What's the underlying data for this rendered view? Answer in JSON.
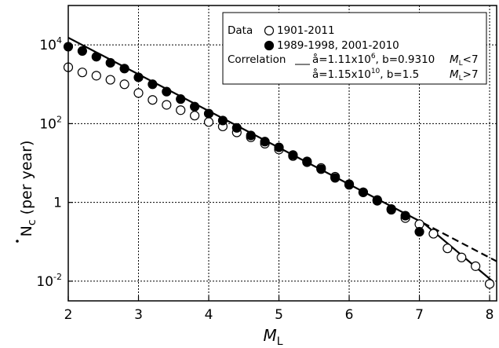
{
  "chart_data": {
    "type": "scatter",
    "xlabel": "M",
    "xlabel_sub": "L",
    "ylabel": "N",
    "ylabel_sub": "c",
    "ylabel_suffix": " (per year)",
    "xlim": [
      2,
      8.1
    ],
    "ylim_log10": [
      -2.5,
      5
    ],
    "log_y": true,
    "grid": true,
    "x_ticks": [
      2,
      3,
      4,
      5,
      6,
      7,
      8
    ],
    "x_tick_labels": [
      "2",
      "3",
      "4",
      "5",
      "6",
      "7",
      "8"
    ],
    "y_ticks": [
      {
        "value": 0.01,
        "base": "10",
        "exp": "-2"
      },
      {
        "value": 1,
        "base": "1",
        "exp": ""
      },
      {
        "value": 100,
        "base": "10",
        "exp": "2"
      },
      {
        "value": 10000,
        "base": "10",
        "exp": "4"
      }
    ],
    "series": [
      {
        "name": "1901-2011",
        "marker": "open-circle",
        "x": [
          2.0,
          2.2,
          2.4,
          2.6,
          2.8,
          3.0,
          3.2,
          3.4,
          3.6,
          3.8,
          4.0,
          4.2,
          4.4,
          4.6,
          4.8,
          5.0,
          5.2,
          5.4,
          5.6,
          5.8,
          6.0,
          6.2,
          6.4,
          6.6,
          6.8,
          7.0,
          7.2,
          7.4,
          7.6,
          7.8,
          8.0
        ],
        "y": [
          2700,
          2000,
          1650,
          1300,
          1000,
          600,
          400,
          300,
          220,
          160,
          110,
          85,
          60,
          45,
          31,
          22,
          15,
          11,
          7.5,
          4.5,
          2.8,
          1.8,
          1.1,
          0.65,
          0.4,
          0.28,
          0.16,
          0.068,
          0.04,
          0.024,
          0.0085
        ]
      },
      {
        "name": "1989-1998, 2001-2010",
        "marker": "filled-circle",
        "x": [
          2.0,
          2.2,
          2.4,
          2.6,
          2.8,
          3.0,
          3.2,
          3.4,
          3.6,
          3.8,
          4.0,
          4.2,
          4.4,
          4.6,
          4.8,
          5.0,
          5.2,
          5.4,
          5.6,
          5.8,
          6.0,
          6.2,
          6.4,
          6.6,
          6.8,
          7.0
        ],
        "y": [
          9000,
          7000,
          5000,
          3500,
          2500,
          1500,
          1000,
          650,
          420,
          270,
          180,
          120,
          78,
          50,
          35,
          25,
          16,
          10.5,
          7,
          4.2,
          2.9,
          1.8,
          1.15,
          0.68,
          0.46,
          0.18
        ]
      }
    ],
    "lines": [
      {
        "label_a": "1.11x10",
        "label_a_exp": "6",
        "label_b": "b=0.9310",
        "range": "M<7",
        "a": 1110000,
        "b": 0.931,
        "x0": 2.0,
        "x1": 7.05,
        "style": "solid"
      },
      {
        "label_a": "1.15x10",
        "label_a_exp": "10",
        "label_b": "b=1.5",
        "range": "M>7",
        "a": 11500000000,
        "b": 1.5,
        "x0": 7.05,
        "x1": 8.05,
        "style": "solid"
      },
      {
        "a": 1110000,
        "b": 0.931,
        "x0": 7.05,
        "x1": 8.1,
        "style": "dashed"
      }
    ],
    "legend": {
      "position": "top-right",
      "data_title": "Data",
      "correlation_title": "Correlation",
      "series_labels": [
        "1901-2011",
        "1989-1998, 2001-2010"
      ],
      "line_a_text": "å=1.11x10",
      "line_a_exp": "6",
      "line_a_b": ", b=0.9310",
      "line_a_range": "M",
      "line_a_range_sub": "L",
      "line_a_range_cond": "<7",
      "line_b_text": "å=1.15x10",
      "line_b_exp": "10",
      "line_b_b": ", b=1.5",
      "line_b_range": "M",
      "line_b_range_sub": "L",
      "line_b_range_cond": ">7"
    }
  }
}
